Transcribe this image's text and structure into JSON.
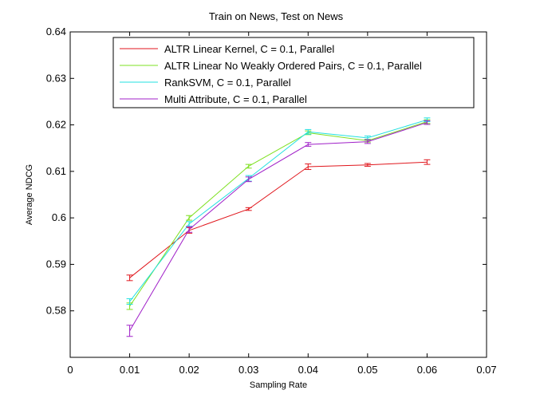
{
  "chart_data": {
    "type": "line",
    "title": "Train on News, Test on News",
    "xlabel": "Sampling Rate",
    "ylabel": "Average NDCG",
    "xlim": [
      0,
      0.07
    ],
    "ylim": [
      0.57,
      0.64
    ],
    "xticks": [
      "0",
      "0.01",
      "0.02",
      "0.03",
      "0.04",
      "0.05",
      "0.06",
      "0.07"
    ],
    "yticks": [
      "0.58",
      "0.59",
      "0.6",
      "0.61",
      "0.62",
      "0.63",
      "0.64"
    ],
    "grid": false,
    "legend_position": "top",
    "x": [
      0.01,
      0.02,
      0.03,
      0.04,
      0.05,
      0.06
    ],
    "series": [
      {
        "name": "ALTR Linear Kernel, C = 0.1, Parallel",
        "color": "#e0161c",
        "values": [
          0.5871,
          0.5973,
          0.6019,
          0.611,
          0.6114,
          0.612
        ],
        "errors": [
          0.0006,
          0.0006,
          0.0003,
          0.0006,
          0.0003,
          0.0005
        ]
      },
      {
        "name": "ALTR Linear No Weakly Ordered Pairs, C = 0.1, Parallel",
        "color": "#7ee020",
        "values": [
          0.581,
          0.6,
          0.6111,
          0.6183,
          0.6166,
          0.6207
        ],
        "errors": [
          0.0007,
          0.0005,
          0.0004,
          0.0004,
          0.0003,
          0.0004
        ]
      },
      {
        "name": "RankSVM, C = 0.1, Parallel",
        "color": "#22e0e0",
        "values": [
          0.582,
          0.5987,
          0.6085,
          0.6185,
          0.6172,
          0.6211
        ],
        "errors": [
          0.0006,
          0.0005,
          0.0006,
          0.0005,
          0.0004,
          0.0004
        ]
      },
      {
        "name": "Multi Attribute, C = 0.1, Parallel",
        "color": "#a020c8",
        "values": [
          0.5757,
          0.5975,
          0.6083,
          0.6158,
          0.6164,
          0.6205
        ],
        "errors": [
          0.0012,
          0.0006,
          0.0005,
          0.0004,
          0.0004,
          0.0004
        ]
      }
    ]
  }
}
